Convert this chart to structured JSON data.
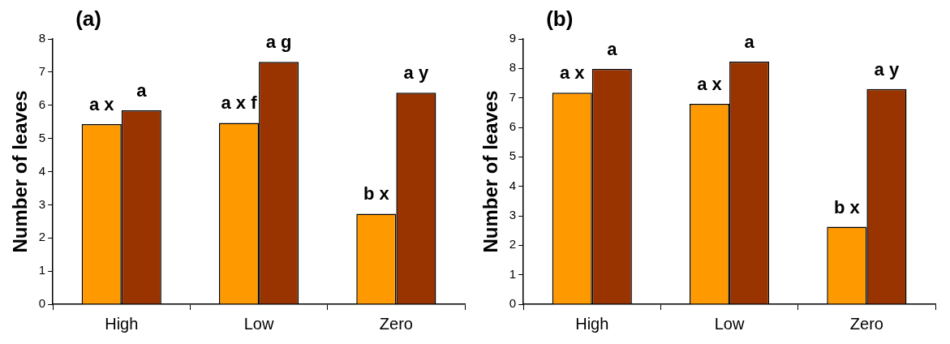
{
  "chart_data": [
    {
      "type": "bar",
      "title": "(a)",
      "ylabel": "Number of leaves",
      "categories": [
        "High",
        "Low",
        "Zero"
      ],
      "ylim": [
        0,
        8
      ],
      "yticks": [
        0,
        1,
        2,
        3,
        4,
        5,
        6,
        7,
        8
      ],
      "grid": false,
      "legend": false,
      "series": [
        {
          "color": "#ff9900",
          "values": [
            5.43,
            5.47,
            2.73
          ],
          "value_labels": [
            "a x",
            "a x f",
            "b x"
          ]
        },
        {
          "color": "#993300",
          "values": [
            5.85,
            7.31,
            6.38
          ],
          "value_labels": [
            "a",
            "a g",
            "a y"
          ]
        }
      ]
    },
    {
      "type": "bar",
      "title": "(b)",
      "ylabel": "Number of leaves",
      "categories": [
        "High",
        "Low",
        "Zero"
      ],
      "ylim": [
        0,
        9
      ],
      "yticks": [
        0,
        1,
        2,
        3,
        4,
        5,
        6,
        7,
        8,
        9
      ],
      "grid": false,
      "legend": false,
      "series": [
        {
          "color": "#ff9900",
          "values": [
            7.18,
            6.8,
            2.63
          ],
          "value_labels": [
            "a x",
            "a x",
            "b x"
          ]
        },
        {
          "color": "#993300",
          "values": [
            7.98,
            8.23,
            7.3
          ],
          "value_labels": [
            "a",
            "a",
            "a y"
          ]
        }
      ]
    }
  ]
}
